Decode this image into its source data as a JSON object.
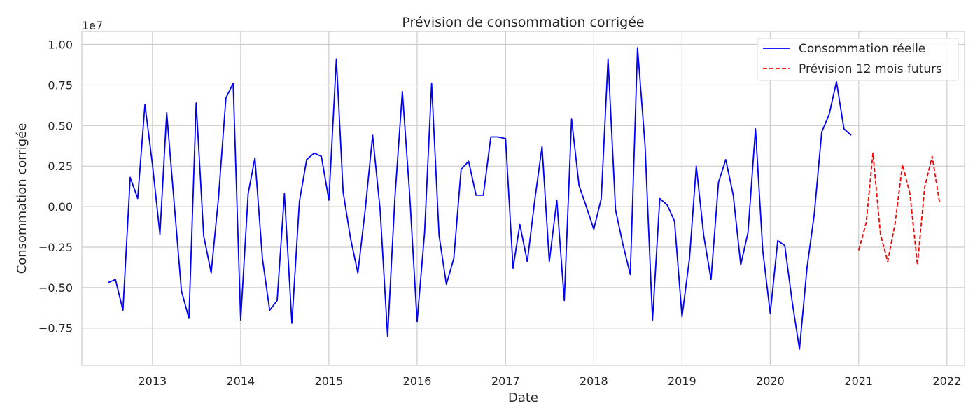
{
  "chart_data": {
    "type": "line",
    "title": "Prévision de consommation corrigée",
    "xlabel": "Date",
    "ylabel": "Consommation corrigée",
    "y_scale_label": "1e7",
    "xlim": [
      "2012-03-15",
      "2022-03-15"
    ],
    "ylim": [
      -9.8,
      10.8
    ],
    "x_ticks": [
      "2013-01-01",
      "2014-01-01",
      "2015-01-01",
      "2016-01-01",
      "2017-01-01",
      "2018-01-01",
      "2019-01-01",
      "2020-01-01",
      "2021-01-01",
      "2022-01-01"
    ],
    "x_tick_labels": [
      "2013",
      "2014",
      "2015",
      "2016",
      "2017",
      "2018",
      "2019",
      "2020",
      "2021",
      "2022"
    ],
    "y_ticks": [
      -7.5,
      -5.0,
      -2.5,
      0.0,
      2.5,
      5.0,
      7.5,
      10.0
    ],
    "y_tick_labels": [
      "−0.75",
      "−0.50",
      "−0.25",
      "0.00",
      "0.25",
      "0.50",
      "0.75",
      "1.00"
    ],
    "grid": true,
    "legend_position": "top-right",
    "series": [
      {
        "name": "Consommation réelle",
        "color": "#0000ff",
        "style": "solid",
        "x": [
          "2012-07-01",
          "2012-08-01",
          "2012-09-01",
          "2012-10-01",
          "2012-11-01",
          "2012-12-01",
          "2013-01-01",
          "2013-02-01",
          "2013-03-01",
          "2013-04-01",
          "2013-05-01",
          "2013-06-01",
          "2013-07-01",
          "2013-08-01",
          "2013-09-01",
          "2013-10-01",
          "2013-11-01",
          "2013-12-01",
          "2014-01-01",
          "2014-02-01",
          "2014-03-01",
          "2014-04-01",
          "2014-05-01",
          "2014-06-01",
          "2014-07-01",
          "2014-08-01",
          "2014-09-01",
          "2014-10-01",
          "2014-11-01",
          "2014-12-01",
          "2015-01-01",
          "2015-02-01",
          "2015-03-01",
          "2015-04-01",
          "2015-05-01",
          "2015-06-01",
          "2015-07-01",
          "2015-08-01",
          "2015-09-01",
          "2015-10-01",
          "2015-11-01",
          "2015-12-01",
          "2016-01-01",
          "2016-02-01",
          "2016-03-01",
          "2016-04-01",
          "2016-05-01",
          "2016-06-01",
          "2016-07-01",
          "2016-08-01",
          "2016-09-01",
          "2016-10-01",
          "2016-11-01",
          "2016-12-01",
          "2017-01-01",
          "2017-02-01",
          "2017-03-01",
          "2017-04-01",
          "2017-05-01",
          "2017-06-01",
          "2017-07-01",
          "2017-08-01",
          "2017-09-01",
          "2017-10-01",
          "2017-11-01",
          "2017-12-01",
          "2018-01-01",
          "2018-02-01",
          "2018-03-01",
          "2018-04-01",
          "2018-05-01",
          "2018-06-01",
          "2018-07-01",
          "2018-08-01",
          "2018-09-01",
          "2018-10-01",
          "2018-11-01",
          "2018-12-01",
          "2019-01-01",
          "2019-02-01",
          "2019-03-01",
          "2019-04-01",
          "2019-05-01",
          "2019-06-01",
          "2019-07-01",
          "2019-08-01",
          "2019-09-01",
          "2019-10-01",
          "2019-11-01",
          "2019-12-01",
          "2020-01-01",
          "2020-02-01",
          "2020-03-01",
          "2020-04-01",
          "2020-05-01",
          "2020-06-01",
          "2020-07-01",
          "2020-08-01",
          "2020-09-01",
          "2020-10-01",
          "2020-11-01",
          "2020-12-01"
        ],
        "values": [
          -4.7,
          -4.5,
          -6.4,
          1.8,
          0.5,
          6.3,
          2.6,
          -1.7,
          5.8,
          0.2,
          -5.2,
          -6.9,
          6.4,
          -1.8,
          -4.1,
          0.5,
          6.7,
          7.6,
          -7.0,
          0.8,
          3.0,
          -3.2,
          -6.4,
          -5.8,
          0.8,
          -7.2,
          0.3,
          2.9,
          3.3,
          3.1,
          0.4,
          9.1,
          0.9,
          -2.0,
          -4.1,
          -0.1,
          4.4,
          -0.2,
          -8.0,
          0.5,
          7.1,
          0.8,
          -7.1,
          -1.6,
          7.6,
          -1.8,
          -4.8,
          -3.2,
          2.3,
          2.8,
          0.7,
          0.7,
          4.3,
          4.3,
          4.2,
          -3.8,
          -1.1,
          -3.4,
          0.3,
          3.7,
          -3.4,
          0.4,
          -5.8,
          5.4,
          1.3,
          0.0,
          -1.4,
          0.5,
          9.1,
          -0.2,
          -2.3,
          -4.2,
          9.8,
          3.8,
          -7.0,
          0.5,
          0.1,
          -0.9,
          -6.8,
          -3.2,
          2.5,
          -1.8,
          -4.5,
          1.5,
          2.9,
          0.7,
          -3.6,
          -1.6,
          4.8,
          -2.7,
          -6.6,
          -2.1,
          -2.4,
          -5.9,
          -8.8,
          -3.8,
          -0.5,
          4.6,
          5.7,
          7.7,
          4.8,
          4.4
        ]
      },
      {
        "name": "Prévision 12 mois futurs",
        "color": "#ff0000",
        "style": "dashed",
        "x": [
          "2021-01-01",
          "2021-02-01",
          "2021-03-01",
          "2021-04-01",
          "2021-05-01",
          "2021-06-01",
          "2021-07-01",
          "2021-08-01",
          "2021-09-01",
          "2021-10-01",
          "2021-11-01",
          "2021-12-01"
        ],
        "values": [
          -2.7,
          -1.0,
          3.3,
          -1.7,
          -3.4,
          -1.0,
          2.6,
          0.8,
          -3.6,
          1.2,
          3.1,
          0.3
        ]
      }
    ]
  }
}
